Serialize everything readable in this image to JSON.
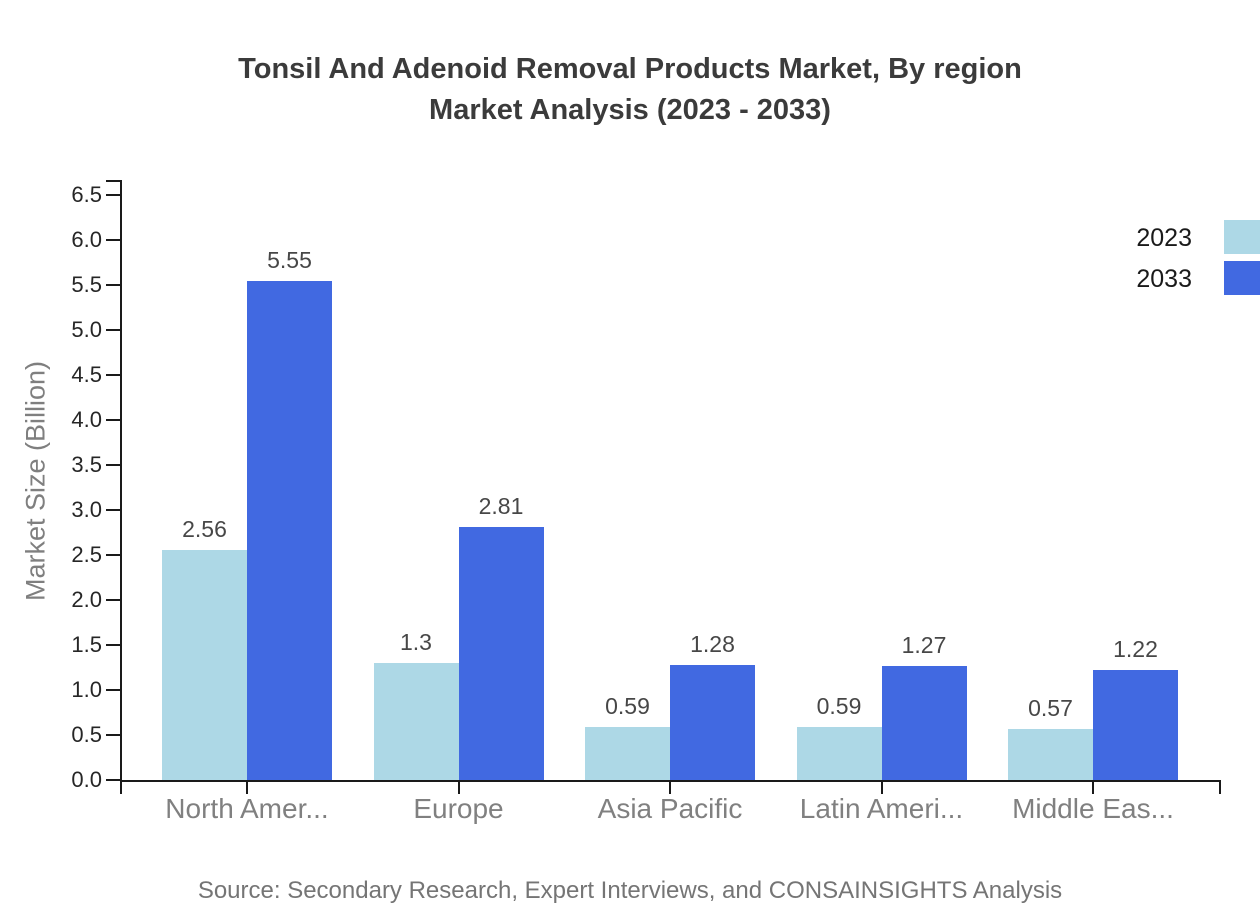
{
  "title": {
    "line1": "Tonsil And Adenoid Removal Products Market, By region",
    "line2": "Market Analysis (2023 - 2033)"
  },
  "source_note": "Source: Secondary Research, Expert Interviews, and CONSAINSIGHTS Analysis",
  "legend": {
    "position": "top-right",
    "items": [
      {
        "label": "2023",
        "color": "#ADD8E6"
      },
      {
        "label": "2033",
        "color": "#4169E1"
      }
    ]
  },
  "colors": {
    "series_2023": "#ADD8E6",
    "series_2033": "#4169E1",
    "axis": "#1a1a1a",
    "tick_text": "#262626",
    "category_text": "#808080",
    "title_text": "#3b3b3b",
    "source_text": "#757575"
  },
  "chart_data": {
    "type": "bar",
    "title": "Tonsil And Adenoid Removal Products Market, By region Market Analysis (2023 - 2033)",
    "categories": [
      "North Amer...",
      "Europe",
      "Asia Pacific",
      "Latin Ameri...",
      "Middle Eas..."
    ],
    "series": [
      {
        "name": "2023",
        "color": "#ADD8E6",
        "values": [
          2.56,
          1.3,
          0.59,
          0.59,
          0.57
        ],
        "value_labels": [
          "2.56",
          "1.3",
          "0.59",
          "0.59",
          "0.57"
        ]
      },
      {
        "name": "2033",
        "color": "#4169E1",
        "values": [
          5.55,
          2.81,
          1.28,
          1.27,
          1.22
        ],
        "value_labels": [
          "5.55",
          "2.81",
          "1.28",
          "1.27",
          "1.22"
        ]
      }
    ],
    "xlabel": "",
    "ylabel": "Market Size (Billion)",
    "ylim": [
      0,
      6.65
    ],
    "yticks": [
      0,
      0.5,
      1,
      1.5,
      2,
      2.5,
      3,
      3.5,
      4,
      4.5,
      5,
      5.5,
      6,
      6.5
    ],
    "ytick_labels": [
      "0.0",
      "0.5",
      "1.0",
      "1.5",
      "2.0",
      "2.5",
      "3.0",
      "3.5",
      "4.0",
      "4.5",
      "5.0",
      "5.5",
      "6.0",
      "6.5"
    ],
    "grid": false,
    "legend_position": "top-right",
    "value_labels_shown": true
  }
}
